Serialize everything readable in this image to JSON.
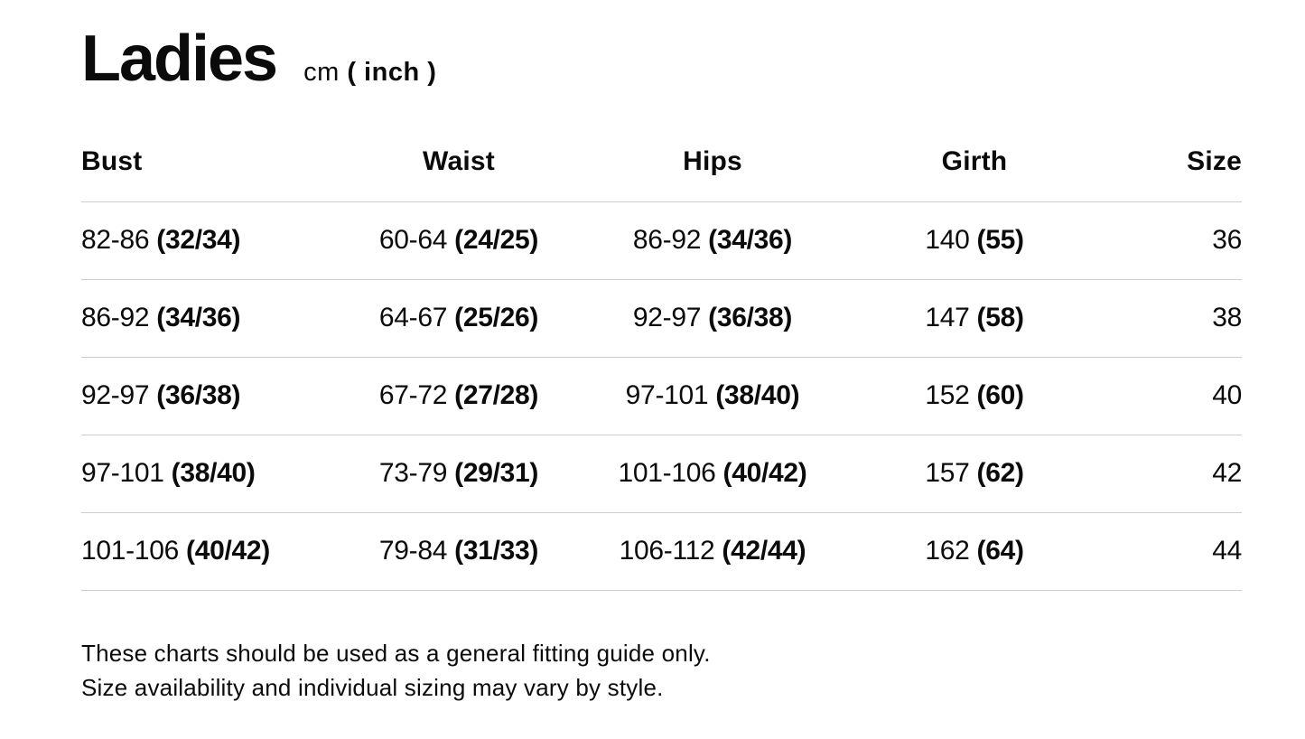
{
  "page": {
    "title": "Ladies",
    "units": {
      "regular": "cm",
      "bold": "( inch )"
    },
    "footer": {
      "line1": "These charts should be used as a general fitting guide only.",
      "line2": "Size availability and individual sizing may vary by style."
    }
  },
  "table": {
    "columns": [
      "Bust",
      "Waist",
      "Hips",
      "Girth",
      "Size"
    ],
    "rows": [
      {
        "bust": "82-86",
        "bust_in": "(32/34)",
        "waist": "60-64",
        "waist_in": "(24/25)",
        "hips": "86-92",
        "hips_in": "(34/36)",
        "girth": "140",
        "girth_in": "(55)",
        "size": "36"
      },
      {
        "bust": "86-92",
        "bust_in": "(34/36)",
        "waist": "64-67",
        "waist_in": "(25/26)",
        "hips": "92-97",
        "hips_in": "(36/38)",
        "girth": "147",
        "girth_in": "(58)",
        "size": "38"
      },
      {
        "bust": "92-97",
        "bust_in": "(36/38)",
        "waist": "67-72",
        "waist_in": "(27/28)",
        "hips": "97-101",
        "hips_in": "(38/40)",
        "girth": "152",
        "girth_in": "(60)",
        "size": "40"
      },
      {
        "bust": "97-101",
        "bust_in": "(38/40)",
        "waist": "73-79",
        "waist_in": "(29/31)",
        "hips": "101-106",
        "hips_in": "(40/42)",
        "girth": "157",
        "girth_in": "(62)",
        "size": "42"
      },
      {
        "bust": "101-106",
        "bust_in": "(40/42)",
        "waist": "79-84",
        "waist_in": "(31/33)",
        "hips": "106-112",
        "hips_in": "(42/44)",
        "girth": "162",
        "girth_in": "(64)",
        "size": "44"
      }
    ]
  }
}
